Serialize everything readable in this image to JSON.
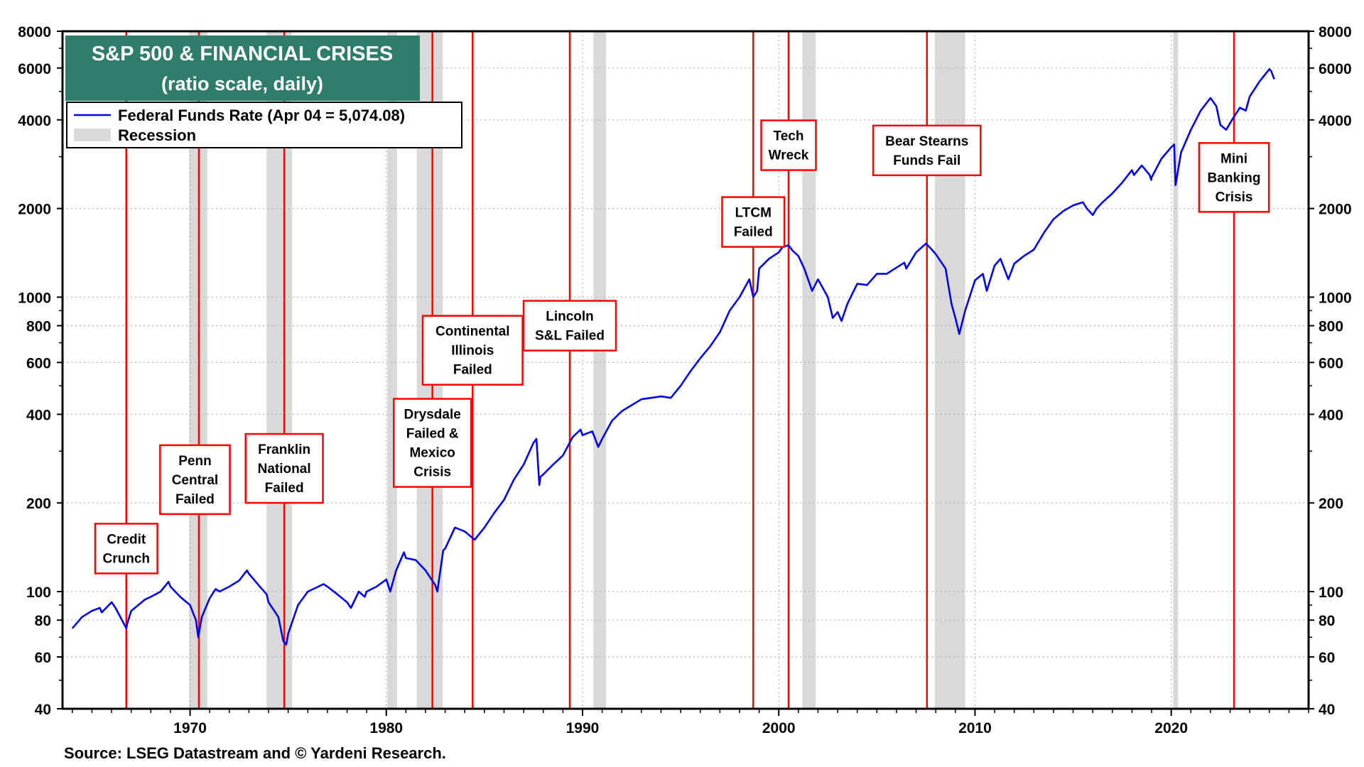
{
  "chart_data": {
    "type": "line",
    "title": "S&P 500 & FINANCIAL CRISES",
    "subtitle": "(ratio scale, daily)",
    "source": "Source: LSEG Datastream and © Yardeni Research.",
    "y_scale": "log",
    "xlim": [
      1963.5,
      2027.0
    ],
    "ylim": [
      40,
      8000
    ],
    "x_ticks": [
      {
        "value": 1970,
        "label": "1970"
      },
      {
        "value": 1980,
        "label": "1980"
      },
      {
        "value": 1990,
        "label": "1990"
      },
      {
        "value": 2000,
        "label": "2000"
      },
      {
        "value": 2010,
        "label": "2010"
      },
      {
        "value": 2020,
        "label": "2020"
      }
    ],
    "y_ticks": [
      {
        "value": 8000,
        "label": "8000"
      },
      {
        "value": 6000,
        "label": "6000"
      },
      {
        "value": 4000,
        "label": "4000"
      },
      {
        "value": 2000,
        "label": "2000"
      },
      {
        "value": 1000,
        "label": "1000"
      },
      {
        "value": 800,
        "label": "800"
      },
      {
        "value": 600,
        "label": "600"
      },
      {
        "value": 400,
        "label": "400"
      },
      {
        "value": 200,
        "label": "200"
      },
      {
        "value": 100,
        "label": "100"
      },
      {
        "value": 80,
        "label": "80"
      },
      {
        "value": 60,
        "label": "60"
      },
      {
        "value": 40,
        "label": "40"
      }
    ],
    "grid": true,
    "colors": {
      "series": "#0000ee",
      "recession": "#d9d9d9",
      "crisis": "#ff0000",
      "title_bg": "#2e7d6b"
    },
    "legend": {
      "position": "top-left",
      "entries": [
        {
          "label": "Federal Funds Rate (Apr 04 = 5,074.08)",
          "kind": "line"
        },
        {
          "label": "Recession",
          "kind": "band"
        }
      ]
    },
    "recessions": [
      [
        1969.95,
        1970.88
      ],
      [
        1973.9,
        1975.2
      ],
      [
        1980.05,
        1980.55
      ],
      [
        1981.55,
        1982.88
      ],
      [
        1990.55,
        1991.2
      ],
      [
        2001.2,
        2001.88
      ],
      [
        2007.95,
        2009.5
      ],
      [
        2020.1,
        2020.35
      ]
    ],
    "crises": [
      {
        "x": 1966.75,
        "label": [
          "Credit",
          "Crunch"
        ],
        "label_x": 1966.75,
        "label_y": 140
      },
      {
        "x": 1970.45,
        "label": [
          "Penn",
          "Central",
          "Failed"
        ],
        "label_x": 1970.25,
        "label_y": 240
      },
      {
        "x": 1974.8,
        "label": [
          "Franklin",
          "National",
          "Failed"
        ],
        "label_x": 1974.8,
        "label_y": 262
      },
      {
        "x": 1982.35,
        "label": [
          "Drysdale",
          "Failed &",
          "Mexico",
          "Crisis"
        ],
        "label_x": 1982.35,
        "label_y": 320
      },
      {
        "x": 1984.4,
        "label": [
          "Continental",
          "Illinois",
          "Failed"
        ],
        "label_x": 1984.4,
        "label_y": 660
      },
      {
        "x": 1989.35,
        "label": [
          "Lincoln",
          "S&L Failed"
        ],
        "label_x": 1989.35,
        "label_y": 800
      },
      {
        "x": 1998.7,
        "label": [
          "LTCM",
          "Failed"
        ],
        "label_x": 1998.7,
        "label_y": 1800
      },
      {
        "x": 2000.5,
        "label": [
          "Tech",
          "Wreck"
        ],
        "label_x": 2000.5,
        "label_y": 3280
      },
      {
        "x": 2007.55,
        "label": [
          "Bear Stearns",
          "Funds Fail"
        ],
        "label_x": 2007.55,
        "label_y": 3150
      },
      {
        "x": 2023.2,
        "label": [
          "Mini",
          "Banking",
          "Crisis"
        ],
        "label_x": 2023.2,
        "label_y": 2550
      }
    ],
    "series": [
      {
        "x": [
          1964.0,
          1964.5,
          1965.0,
          1965.4,
          1965.5,
          1966.0,
          1966.2,
          1966.75,
          1966.8,
          1967.0,
          1967.7,
          1968.0,
          1968.5,
          1968.9,
          1969.0,
          1969.5,
          1970.0,
          1970.3,
          1970.42,
          1970.6,
          1971.0,
          1971.3,
          1971.5,
          1972.0,
          1972.5,
          1972.9,
          1973.0,
          1973.5,
          1973.9,
          1974.0,
          1974.5,
          1974.75,
          1974.9,
          1975.0,
          1975.5,
          1976.0,
          1976.8,
          1977.0,
          1977.5,
          1978.0,
          1978.2,
          1978.6,
          1978.9,
          1979.0,
          1979.5,
          1980.0,
          1980.2,
          1980.5,
          1980.9,
          1981.0,
          1981.5,
          1982.0,
          1982.5,
          1982.6,
          1982.9,
          1983.0,
          1983.5,
          1984.0,
          1984.5,
          1985.0,
          1985.5,
          1986.0,
          1986.5,
          1987.0,
          1987.5,
          1987.65,
          1987.8,
          1987.85,
          1988.0,
          1988.5,
          1989.0,
          1989.5,
          1989.9,
          1990.0,
          1990.5,
          1990.8,
          1991.0,
          1991.5,
          1992.0,
          1993.0,
          1994.0,
          1994.5,
          1995.0,
          1995.5,
          1996.0,
          1996.5,
          1997.0,
          1997.5,
          1998.0,
          1998.5,
          1998.7,
          1998.9,
          1999.0,
          1999.5,
          2000.0,
          2000.2,
          2000.5,
          2000.7,
          2001.0,
          2001.3,
          2001.7,
          2002.0,
          2002.5,
          2002.75,
          2003.0,
          2003.2,
          2003.5,
          2004.0,
          2004.5,
          2005.0,
          2005.5,
          2006.0,
          2006.4,
          2006.5,
          2007.0,
          2007.5,
          2007.8,
          2008.0,
          2008.5,
          2008.8,
          2009.0,
          2009.2,
          2009.5,
          2010.0,
          2010.4,
          2010.6,
          2011.0,
          2011.3,
          2011.7,
          2012.0,
          2012.5,
          2013.0,
          2013.5,
          2014.0,
          2014.5,
          2015.0,
          2015.5,
          2015.7,
          2016.0,
          2016.2,
          2016.5,
          2017.0,
          2017.5,
          2018.0,
          2018.1,
          2018.5,
          2018.9,
          2018.98,
          2019.0,
          2019.5,
          2020.0,
          2020.15,
          2020.22,
          2020.5,
          2021.0,
          2021.5,
          2022.0,
          2022.3,
          2022.5,
          2022.8,
          2023.0,
          2023.2,
          2023.5,
          2023.8,
          2024.0,
          2024.5,
          2025.0,
          2025.1,
          2025.25
        ],
        "values": [
          75,
          82,
          86,
          88,
          85,
          92,
          88,
          75,
          78,
          86,
          94,
          96,
          100,
          108,
          104,
          96,
          90,
          80,
          70,
          82,
          95,
          102,
          100,
          104,
          109,
          118,
          115,
          105,
          98,
          92,
          82,
          68,
          66,
          72,
          90,
          100,
          106,
          104,
          98,
          92,
          88,
          100,
          96,
          100,
          104,
          110,
          100,
          118,
          136,
          130,
          128,
          118,
          105,
          100,
          138,
          140,
          165,
          160,
          150,
          165,
          185,
          205,
          240,
          270,
          320,
          330,
          230,
          245,
          250,
          270,
          290,
          335,
          355,
          340,
          350,
          310,
          330,
          380,
          410,
          450,
          460,
          455,
          500,
          560,
          620,
          680,
          760,
          900,
          1000,
          1150,
          1000,
          1050,
          1250,
          1350,
          1420,
          1480,
          1500,
          1440,
          1380,
          1250,
          1050,
          1150,
          1000,
          850,
          890,
          830,
          950,
          1110,
          1100,
          1200,
          1200,
          1260,
          1310,
          1250,
          1420,
          1520,
          1450,
          1400,
          1250,
          950,
          850,
          750,
          900,
          1140,
          1200,
          1050,
          1280,
          1350,
          1150,
          1300,
          1380,
          1450,
          1650,
          1840,
          1960,
          2050,
          2100,
          2000,
          1900,
          2000,
          2100,
          2250,
          2450,
          2700,
          2600,
          2800,
          2600,
          2500,
          2550,
          2950,
          3230,
          3300,
          2400,
          3100,
          3700,
          4300,
          4750,
          4450,
          3850,
          3700,
          3900,
          4100,
          4400,
          4300,
          4800,
          5400,
          5950,
          5850,
          5500
        ]
      }
    ]
  }
}
